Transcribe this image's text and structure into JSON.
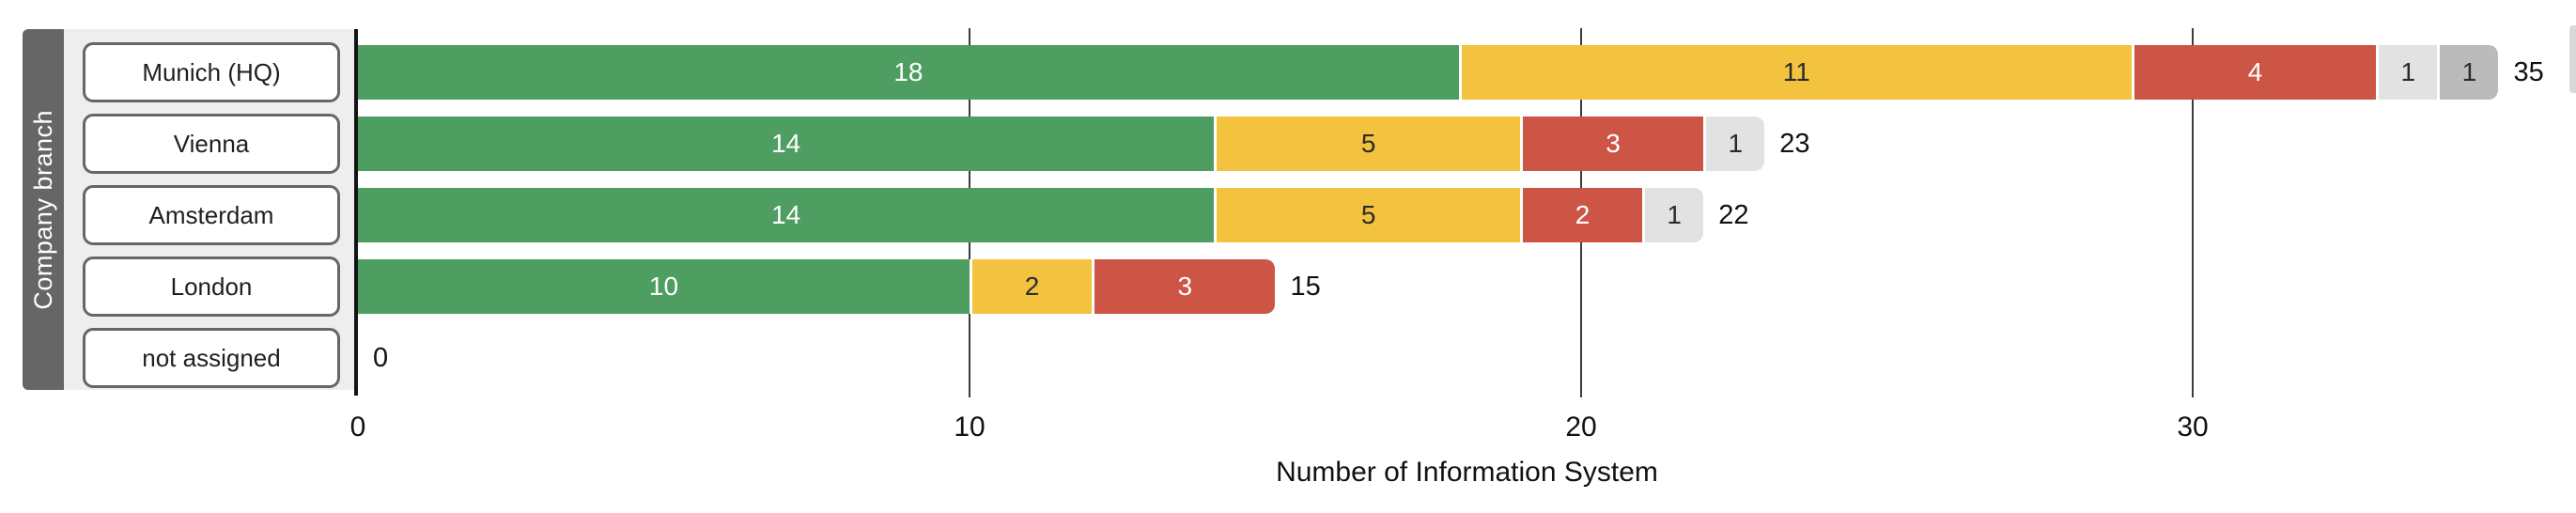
{
  "chart_data": {
    "type": "bar",
    "orientation": "horizontal",
    "stacked": true,
    "xlabel": "Number of Information System",
    "ylabel": "Company branch",
    "categories": [
      "Munich (HQ)",
      "Vienna",
      "Amsterdam",
      "London",
      "not assigned"
    ],
    "series": [
      {
        "name": "status-green",
        "color": "#4e9e62",
        "label_color": "#ffffff",
        "values": [
          18,
          14,
          14,
          10,
          0
        ]
      },
      {
        "name": "status-yellow",
        "color": "#f3c23e",
        "label_color": "#2b2b2b",
        "values": [
          11,
          5,
          5,
          2,
          0
        ]
      },
      {
        "name": "status-red",
        "color": "#cc5546",
        "label_color": "#ffffff",
        "values": [
          4,
          3,
          2,
          3,
          0
        ]
      },
      {
        "name": "status-light-gray",
        "color": "#e2e2e2",
        "label_color": "#2b2b2b",
        "values": [
          1,
          1,
          1,
          0,
          0
        ]
      },
      {
        "name": "status-gray",
        "color": "#bbbbbb",
        "label_color": "#2b2b2b",
        "values": [
          1,
          0,
          0,
          0,
          0
        ]
      }
    ],
    "totals": [
      35,
      23,
      22,
      15,
      0
    ],
    "x_ticks": [
      0,
      10,
      20,
      30
    ],
    "xlim": [
      0,
      36.3
    ],
    "grid": true,
    "legend": false
  },
  "style": {
    "axis_color": "#141414",
    "grid_color": "#3c3c3c",
    "panel_bg": "#eeeeee",
    "band_bg": "#666666",
    "button_border": "#666666"
  }
}
